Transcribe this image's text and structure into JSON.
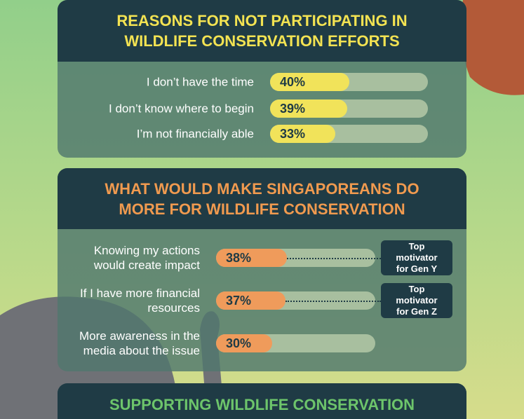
{
  "chart_data": [
    {
      "type": "bar",
      "title": "REASONS FOR NOT PARTICIPATING IN WILDLIFE CONSERVATION EFFORTS",
      "categories": [
        "I don’t have the time",
        "I don’t know where to begin",
        "I’m not financially able"
      ],
      "values": [
        40,
        39,
        33
      ],
      "value_labels": [
        "40%",
        "39%",
        "33%"
      ],
      "xlim": [
        0,
        80
      ],
      "color": "#f1e35a",
      "title_color": "#f3e352"
    },
    {
      "type": "bar",
      "title": "WHAT WOULD MAKE SINGAPOREANS DO MORE FOR WILDLIFE CONSERVATION",
      "categories": [
        "Knowing my actions would create impact",
        "If I have more financial resources",
        "More awareness in the media about the issue"
      ],
      "values": [
        38,
        37,
        30
      ],
      "value_labels": [
        "38%",
        "37%",
        "30%"
      ],
      "xlim": [
        0,
        85
      ],
      "color": "#ef9b5b",
      "title_color": "#f09a4f",
      "annotations": [
        {
          "text": "Top motivator for Gen Y"
        },
        {
          "text": "Top motivator for Gen Z"
        }
      ]
    }
  ],
  "footer_panel": {
    "title": "SUPPORTING WILDLIFE CONSERVATION"
  }
}
